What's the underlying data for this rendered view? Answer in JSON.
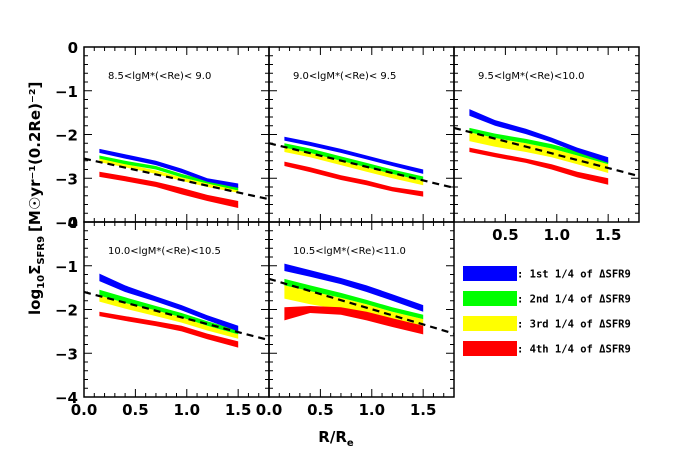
{
  "chart_data": {
    "type": "area",
    "xlabel": "R/R",
    "xlabel_sub": "e",
    "ylabel_prefix": "log",
    "ylabel_sub1": "10",
    "ylabel_sigma": "Σ",
    "ylabel_sub2": "SFR9",
    "ylabel_units": "[M☉yr⁻¹(0.2Re)⁻²]",
    "xlim": [
      0,
      1.8
    ],
    "ylim": [
      -4,
      0
    ],
    "x_ticks": [
      "0.0",
      "0.5",
      "1.0",
      "1.5"
    ],
    "y_ticks": [
      "0",
      "−1",
      "−2",
      "−3",
      "−4"
    ],
    "legend": [
      {
        "label": ": 1st 1/4 of ΔSFR9",
        "color": "#0000ff"
      },
      {
        "label": ": 2nd 1/4 of ΔSFR9",
        "color": "#00ff00"
      },
      {
        "label": ": 3rd 1/4 of ΔSFR9",
        "color": "#ffff00"
      },
      {
        "label": ": 4th 1/4 of ΔSFR9",
        "color": "#ff0000"
      }
    ],
    "panels": [
      {
        "title": "8.5<lgM*(<Re)< 9.0",
        "x": [
          0.15,
          0.4,
          0.7,
          0.95,
          1.2,
          1.5
        ],
        "fit_line": [
          [
            0,
            -2.55
          ],
          [
            1.8,
            -3.48
          ]
        ],
        "series": [
          {
            "name": "1st 1/4 of ΔSFR9",
            "color": "#0000ff",
            "upper": [
              -2.33,
              -2.45,
              -2.6,
              -2.78,
              -3.0,
              -3.12
            ],
            "lower": [
              -2.42,
              -2.55,
              -2.7,
              -2.88,
              -3.08,
              -3.22
            ]
          },
          {
            "name": "2nd 1/4 of ΔSFR9",
            "color": "#00ff00",
            "upper": [
              -2.48,
              -2.6,
              -2.72,
              -2.9,
              -3.05,
              -3.2
            ],
            "lower": [
              -2.55,
              -2.68,
              -2.8,
              -2.98,
              -3.12,
              -3.28
            ]
          },
          {
            "name": "3rd 1/4 of ΔSFR9",
            "color": "#ffff00",
            "upper": [
              -2.55,
              -2.67,
              -2.82,
              -2.98,
              -3.12,
              -3.25
            ],
            "lower": [
              -2.63,
              -2.75,
              -2.9,
              -3.06,
              -3.2,
              -3.33
            ]
          },
          {
            "name": "4th 1/4 of ΔSFR9",
            "color": "#ff0000",
            "upper": [
              -2.85,
              -2.95,
              -3.08,
              -3.22,
              -3.38,
              -3.52
            ],
            "lower": [
              -2.97,
              -3.07,
              -3.2,
              -3.37,
              -3.52,
              -3.68
            ]
          }
        ]
      },
      {
        "title": "9.0<lgM*(<Re)< 9.5",
        "x": [
          0.15,
          0.4,
          0.7,
          0.95,
          1.2,
          1.5
        ],
        "fit_line": [
          [
            0,
            -2.2
          ],
          [
            1.8,
            -3.22
          ]
        ],
        "series": [
          {
            "name": "1st 1/4 of ΔSFR9",
            "color": "#0000ff",
            "upper": [
              -2.05,
              -2.17,
              -2.33,
              -2.48,
              -2.63,
              -2.8
            ],
            "lower": [
              -2.14,
              -2.26,
              -2.42,
              -2.57,
              -2.72,
              -2.9
            ]
          },
          {
            "name": "2nd 1/4 of ΔSFR9",
            "color": "#00ff00",
            "upper": [
              -2.2,
              -2.32,
              -2.5,
              -2.65,
              -2.8,
              -2.96
            ],
            "lower": [
              -2.3,
              -2.42,
              -2.6,
              -2.75,
              -2.9,
              -3.06
            ]
          },
          {
            "name": "3rd 1/4 of ΔSFR9",
            "color": "#ffff00",
            "upper": [
              -2.3,
              -2.42,
              -2.6,
              -2.75,
              -2.9,
              -3.06
            ],
            "lower": [
              -2.4,
              -2.52,
              -2.7,
              -2.85,
              -3.0,
              -3.16
            ]
          },
          {
            "name": "4th 1/4 of ΔSFR9",
            "color": "#ff0000",
            "upper": [
              -2.62,
              -2.75,
              -2.93,
              -3.05,
              -3.2,
              -3.3
            ],
            "lower": [
              -2.72,
              -2.86,
              -3.04,
              -3.16,
              -3.3,
              -3.42
            ]
          }
        ]
      },
      {
        "title": "9.5<lgM*(<Re)<10.0",
        "x": [
          0.15,
          0.4,
          0.7,
          0.95,
          1.2,
          1.5
        ],
        "fit_line": [
          [
            0,
            -1.85
          ],
          [
            1.8,
            -2.95
          ]
        ],
        "series": [
          {
            "name": "1st 1/4 of ΔSFR9",
            "color": "#0000ff",
            "upper": [
              -1.42,
              -1.67,
              -1.87,
              -2.07,
              -2.3,
              -2.52
            ],
            "lower": [
              -1.57,
              -1.8,
              -1.99,
              -2.18,
              -2.41,
              -2.65
            ]
          },
          {
            "name": "2nd 1/4 of ΔSFR9",
            "color": "#00ff00",
            "upper": [
              -1.85,
              -1.98,
              -2.1,
              -2.22,
              -2.38,
              -2.58
            ],
            "lower": [
              -1.95,
              -2.08,
              -2.2,
              -2.32,
              -2.48,
              -2.68
            ]
          },
          {
            "name": "3rd 1/4 of ΔSFR9",
            "color": "#ffff00",
            "upper": [
              -1.95,
              -2.08,
              -2.2,
              -2.32,
              -2.48,
              -2.68
            ],
            "lower": [
              -2.15,
              -2.28,
              -2.4,
              -2.52,
              -2.68,
              -2.88
            ]
          },
          {
            "name": "4th 1/4 of ΔSFR9",
            "color": "#ff0000",
            "upper": [
              -2.3,
              -2.42,
              -2.55,
              -2.68,
              -2.85,
              -3.0
            ],
            "lower": [
              -2.4,
              -2.52,
              -2.65,
              -2.8,
              -2.98,
              -3.15
            ]
          }
        ]
      },
      {
        "title": "10.0<lgM*(<Re)<10.5",
        "x": [
          0.15,
          0.4,
          0.7,
          0.95,
          1.2,
          1.5
        ],
        "fit_line": [
          [
            0,
            -1.6
          ],
          [
            1.8,
            -2.7
          ]
        ],
        "series": [
          {
            "name": "1st 1/4 of ΔSFR9",
            "color": "#0000ff",
            "upper": [
              -1.18,
              -1.45,
              -1.7,
              -1.9,
              -2.13,
              -2.37
            ],
            "lower": [
              -1.35,
              -1.6,
              -1.82,
              -2.02,
              -2.25,
              -2.5
            ]
          },
          {
            "name": "2nd 1/4 of ΔSFR9",
            "color": "#00ff00",
            "upper": [
              -1.55,
              -1.72,
              -1.92,
              -2.08,
              -2.27,
              -2.47
            ],
            "lower": [
              -1.68,
              -1.85,
              -2.02,
              -2.18,
              -2.37,
              -2.57
            ]
          },
          {
            "name": "3rd 1/4 of ΔSFR9",
            "color": "#ffff00",
            "upper": [
              -1.68,
              -1.85,
              -2.02,
              -2.18,
              -2.37,
              -2.57
            ],
            "lower": [
              -1.82,
              -1.98,
              -2.15,
              -2.3,
              -2.48,
              -2.67
            ]
          },
          {
            "name": "4th 1/4 of ΔSFR9",
            "color": "#ff0000",
            "upper": [
              -2.05,
              -2.15,
              -2.27,
              -2.37,
              -2.55,
              -2.73
            ],
            "lower": [
              -2.15,
              -2.26,
              -2.38,
              -2.5,
              -2.68,
              -2.87
            ]
          }
        ]
      },
      {
        "title": "10.5<lgM*(<Re)<11.0",
        "x": [
          0.15,
          0.4,
          0.7,
          0.95,
          1.2,
          1.5
        ],
        "fit_line": [
          [
            0,
            -1.3
          ],
          [
            1.8,
            -2.55
          ]
        ],
        "series": [
          {
            "name": "1st 1/4 of ΔSFR9",
            "color": "#0000ff",
            "upper": [
              -0.95,
              -1.1,
              -1.28,
              -1.45,
              -1.65,
              -1.9
            ],
            "lower": [
              -1.12,
              -1.25,
              -1.42,
              -1.6,
              -1.8,
              -2.05
            ]
          },
          {
            "name": "2nd 1/4 of ΔSFR9",
            "color": "#00ff00",
            "upper": [
              -1.3,
              -1.45,
              -1.62,
              -1.78,
              -1.95,
              -2.12
            ],
            "lower": [
              -1.45,
              -1.58,
              -1.73,
              -1.88,
              -2.05,
              -2.22
            ]
          },
          {
            "name": "3rd 1/4 of ΔSFR9",
            "color": "#ffff00",
            "upper": [
              -1.45,
              -1.58,
              -1.73,
              -1.88,
              -2.05,
              -2.22
            ],
            "lower": [
              -1.75,
              -1.88,
              -2.0,
              -2.1,
              -2.22,
              -2.37
            ]
          },
          {
            "name": "4th 1/4 of ΔSFR9",
            "color": "#ff0000",
            "upper": [
              -1.95,
              -1.92,
              -1.95,
              -2.05,
              -2.2,
              -2.37
            ],
            "lower": [
              -2.25,
              -2.08,
              -2.12,
              -2.25,
              -2.4,
              -2.57
            ]
          }
        ]
      }
    ]
  }
}
